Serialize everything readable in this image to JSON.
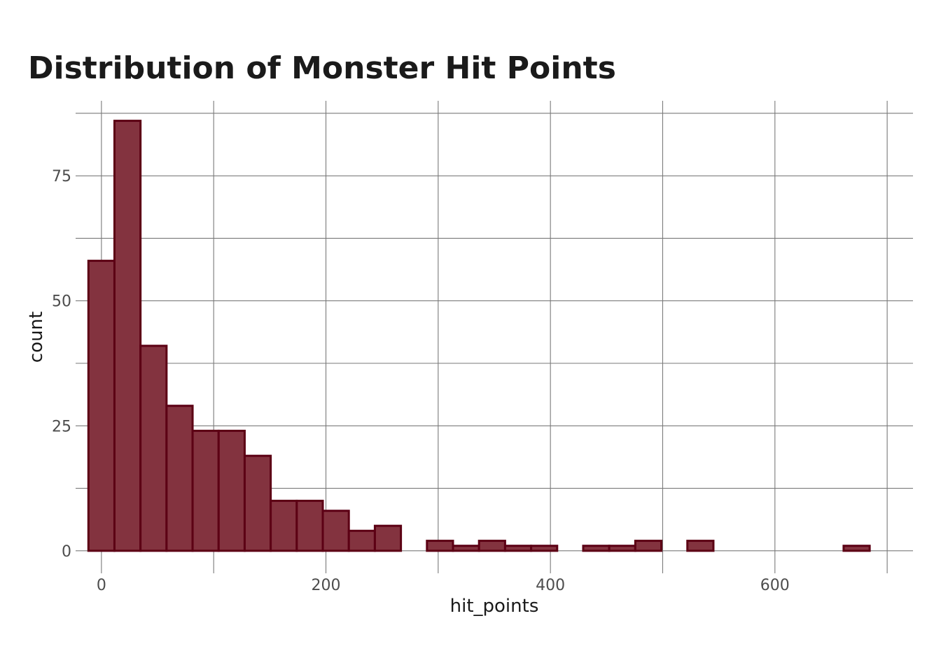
{
  "chart_data": {
    "type": "bar",
    "title": "Distribution of Monster Hit Points",
    "xlabel": "hit_points",
    "ylabel": "count",
    "xlim": [
      -23,
      723
    ],
    "ylim": [
      -4.5,
      90
    ],
    "x_ticks": [
      0,
      200,
      400,
      600
    ],
    "x_tick_labels": [
      "0",
      "200",
      "400",
      "600"
    ],
    "x_minor_ticks": [
      100,
      300,
      500,
      700
    ],
    "y_ticks": [
      0,
      25,
      50,
      75
    ],
    "y_tick_labels": [
      "0",
      "25",
      "50",
      "75"
    ],
    "y_minor_ticks": [
      12.5,
      37.5,
      62.5,
      87.5
    ],
    "grid": true,
    "bar_color": "#83333f",
    "bar_outline_color": "#5c0014",
    "bins": [
      {
        "x0": -11.6,
        "x1": 11.6,
        "count": 58
      },
      {
        "x0": 11.6,
        "x1": 34.8,
        "count": 86
      },
      {
        "x0": 34.8,
        "x1": 58.0,
        "count": 41
      },
      {
        "x0": 58.0,
        "x1": 81.2,
        "count": 29
      },
      {
        "x0": 81.2,
        "x1": 104.4,
        "count": 24
      },
      {
        "x0": 104.4,
        "x1": 127.6,
        "count": 24
      },
      {
        "x0": 127.6,
        "x1": 150.8,
        "count": 19
      },
      {
        "x0": 150.8,
        "x1": 174.0,
        "count": 10
      },
      {
        "x0": 174.0,
        "x1": 197.2,
        "count": 10
      },
      {
        "x0": 197.2,
        "x1": 220.4,
        "count": 8
      },
      {
        "x0": 220.4,
        "x1": 243.6,
        "count": 4
      },
      {
        "x0": 243.6,
        "x1": 266.8,
        "count": 5
      },
      {
        "x0": 266.8,
        "x1": 290.0,
        "count": 0
      },
      {
        "x0": 290.0,
        "x1": 313.2,
        "count": 2
      },
      {
        "x0": 313.2,
        "x1": 336.4,
        "count": 1
      },
      {
        "x0": 336.4,
        "x1": 359.6,
        "count": 2
      },
      {
        "x0": 359.6,
        "x1": 382.8,
        "count": 1
      },
      {
        "x0": 382.8,
        "x1": 406.0,
        "count": 1
      },
      {
        "x0": 406.0,
        "x1": 429.2,
        "count": 0
      },
      {
        "x0": 429.2,
        "x1": 452.4,
        "count": 1
      },
      {
        "x0": 452.4,
        "x1": 475.6,
        "count": 1
      },
      {
        "x0": 475.6,
        "x1": 498.8,
        "count": 2
      },
      {
        "x0": 498.8,
        "x1": 522.0,
        "count": 0
      },
      {
        "x0": 522.0,
        "x1": 545.2,
        "count": 2
      },
      {
        "x0": 545.2,
        "x1": 568.4,
        "count": 0
      },
      {
        "x0": 568.4,
        "x1": 591.6,
        "count": 0
      },
      {
        "x0": 591.6,
        "x1": 614.8,
        "count": 0
      },
      {
        "x0": 614.8,
        "x1": 638.0,
        "count": 0
      },
      {
        "x0": 638.0,
        "x1": 661.2,
        "count": 0
      },
      {
        "x0": 661.2,
        "x1": 684.4,
        "count": 1
      }
    ]
  }
}
